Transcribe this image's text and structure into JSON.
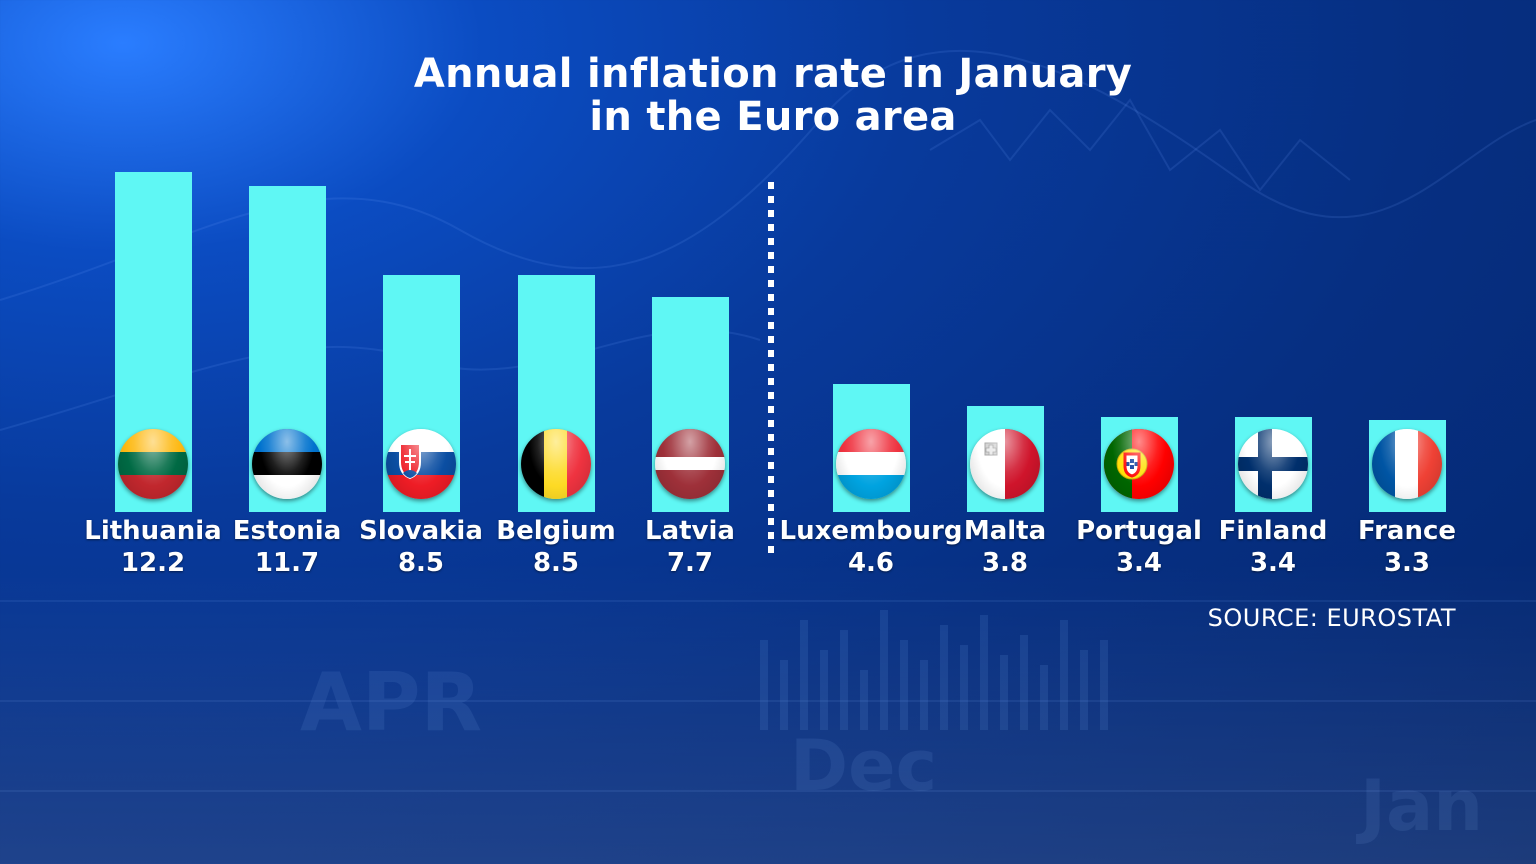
{
  "chart_data": {
    "type": "bar",
    "title": "Annual inflation rate in January",
    "subtitle": "in the Euro area",
    "categories": [
      "Lithuania",
      "Estonia",
      "Slovakia",
      "Belgium",
      "Latvia",
      "Luxembourg",
      "Malta",
      "Portugal",
      "Finland",
      "France"
    ],
    "value_labels": [
      "12.2",
      "11.7",
      "8.5",
      "8.5",
      "7.7",
      "4.6",
      "3.8",
      "3.4",
      "3.4",
      "3.3"
    ],
    "values": [
      12.2,
      11.7,
      8.5,
      8.5,
      7.7,
      4.6,
      3.8,
      3.4,
      3.4,
      3.3
    ],
    "flags": [
      "lithuania-flag",
      "estonia-flag",
      "slovakia-flag",
      "belgium-flag",
      "latvia-flag",
      "luxembourg-flag",
      "malta-flag",
      "portugal-flag",
      "finland-flag",
      "france-flag"
    ],
    "bar_color": "#5ff7f4",
    "grid": false,
    "legend": "none",
    "divider_after_category": "Latvia",
    "source": "SOURCE: EUROSTAT"
  }
}
